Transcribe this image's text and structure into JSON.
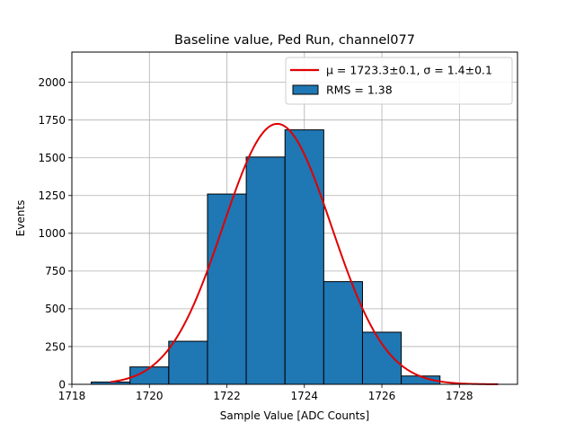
{
  "chart_data": {
    "type": "bar",
    "title": "Baseline value, Ped Run, channel077",
    "xlabel": "Sample Value [ADC Counts]",
    "ylabel": "Events",
    "xlim": [
      1718,
      1729.5
    ],
    "ylim": [
      0,
      2200
    ],
    "grid": true,
    "legend_position": "top-right",
    "x_ticks": [
      1718,
      1720,
      1722,
      1724,
      1726,
      1728
    ],
    "x_tick_labels": [
      "1718",
      "1720",
      "1722",
      "1724",
      "1726",
      "1728"
    ],
    "y_ticks": [
      0,
      250,
      500,
      750,
      1000,
      1250,
      1500,
      1750,
      2000
    ],
    "y_tick_labels": [
      "0",
      "250",
      "500",
      "750",
      "1000",
      "1250",
      "1500",
      "1750",
      "2000"
    ],
    "histogram": {
      "bin_edges": [
        1718.5,
        1719.5,
        1720.5,
        1721.5,
        1722.5,
        1723.5,
        1724.5,
        1725.5,
        1726.5,
        1727.5
      ],
      "counts": [
        15,
        115,
        285,
        1260,
        1505,
        1685,
        680,
        345,
        55
      ],
      "color": "#1f77b4",
      "edge_color": "#000000"
    },
    "fit": {
      "type": "gaussian",
      "mean": 1723.3,
      "sigma": 1.4,
      "amplitude": 1725,
      "x_range": [
        1719,
        1729
      ],
      "color": "#e00000"
    },
    "legend": [
      {
        "label": "μ = 1723.3±0.1, σ = 1.4±0.1",
        "kind": "line",
        "color": "#e00000"
      },
      {
        "label": "RMS = 1.38",
        "kind": "patch",
        "color": "#1f77b4"
      }
    ]
  }
}
